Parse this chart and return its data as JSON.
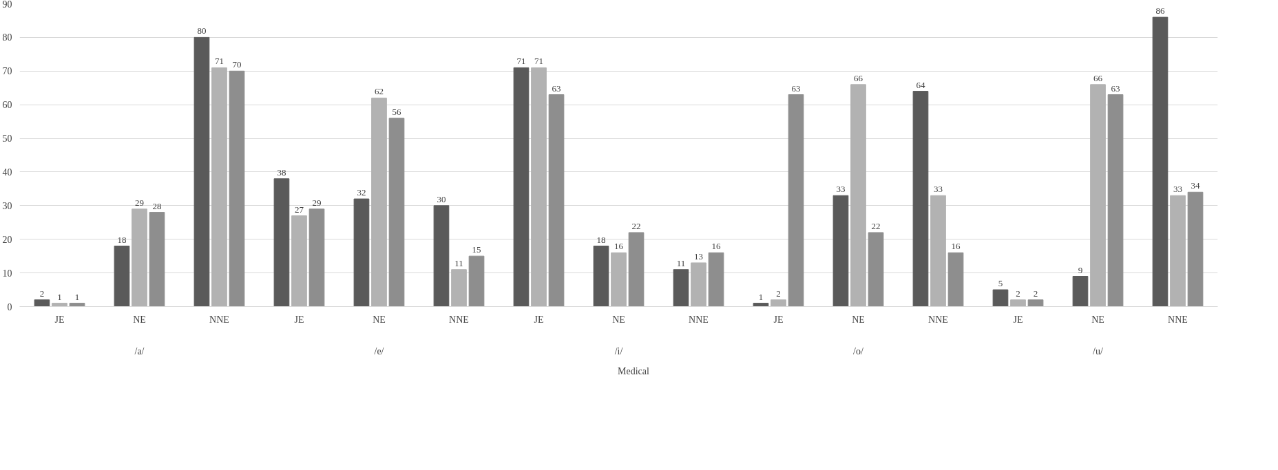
{
  "chart_data": {
    "type": "bar",
    "categories": [
      "JE",
      "NE",
      "NNE",
      "JE",
      "NE",
      "NNE",
      "JE",
      "NE",
      "NNE",
      "JE",
      "NE",
      "NNE",
      "JE",
      "NE",
      "NNE"
    ],
    "annotations": [
      "/a/",
      "/e/",
      "/i/",
      "/o/",
      "/u/"
    ],
    "series": [
      {
        "name": "Medical",
        "color": "#5a5a5a",
        "values": [
          2,
          18,
          80,
          38,
          32,
          30,
          71,
          18,
          11,
          1,
          33,
          64,
          5,
          9,
          86
        ]
      },
      {
        "color": "#b2b2b2",
        "values": [
          1,
          29,
          71,
          27,
          62,
          11,
          71,
          16,
          13,
          2,
          66,
          33,
          2,
          66,
          33
        ]
      },
      {
        "color": "#8e8e8e",
        "values": [
          1,
          28,
          70,
          29,
          56,
          15,
          63,
          22,
          16,
          63,
          22,
          16,
          2,
          63,
          34
        ]
      }
    ],
    "ylim": [
      0,
      90
    ],
    "yticks": [
      0,
      10,
      20,
      30,
      40,
      50,
      60,
      70,
      80,
      90
    ],
    "grid": "y",
    "legend": "bottom",
    "data_labels": true
  }
}
